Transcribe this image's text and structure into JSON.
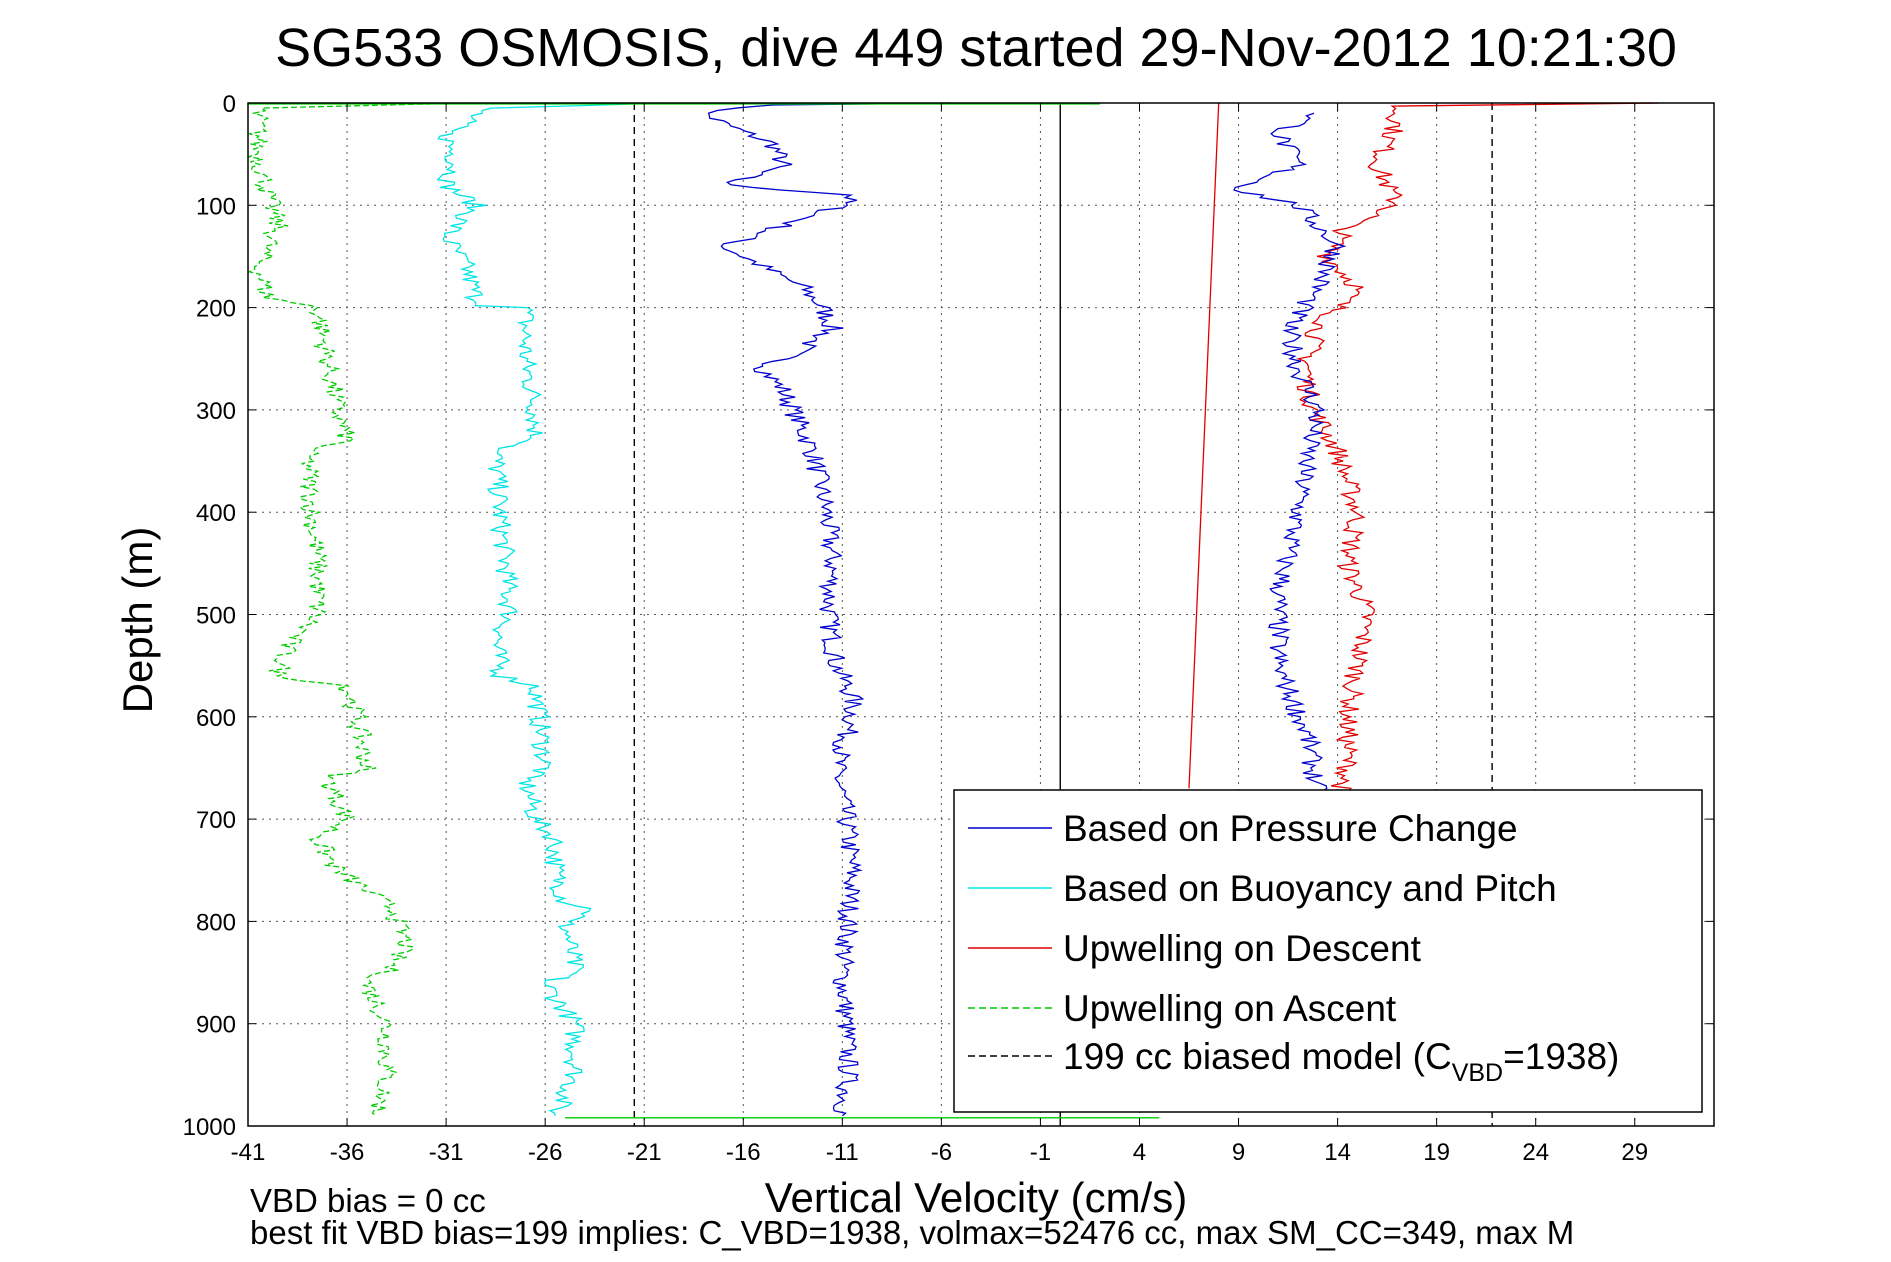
{
  "chart_data": {
    "type": "line",
    "title": "SG533 OSMOSIS, dive 449 started 29-Nov-2012 10:21:30",
    "xlabel": "Vertical Velocity (cm/s)",
    "ylabel": "Depth (m)",
    "xlim": [
      -41,
      33
    ],
    "ylim": [
      0,
      1000
    ],
    "y_reversed": true,
    "xticks": [
      -41,
      -36,
      -31,
      -26,
      -21,
      -16,
      -11,
      -6,
      -1,
      4,
      9,
      14,
      19,
      24,
      29
    ],
    "yticks": [
      0,
      100,
      200,
      300,
      400,
      500,
      600,
      700,
      800,
      900,
      1000
    ],
    "grid": true,
    "legend_position": "bottom-right",
    "footnote_line1": "VBD bias = 0 cc",
    "footnote_line2": "best fit VBD bias=199 implies: C_VBD=1938, volmax=52476 cc, max SM_CC=349, max M",
    "legend": [
      {
        "label": "Based on Pressure Change",
        "color": "#0000cc",
        "dash": "solid"
      },
      {
        "label": "Based on Buoyancy and Pitch",
        "color": "#00e5e5",
        "dash": "solid"
      },
      {
        "label": "Upwelling on Descent",
        "color": "#e00000",
        "dash": "solid"
      },
      {
        "label": "Upwelling on Ascent",
        "color": "#00cc00",
        "dash": "dashed"
      },
      {
        "label": "199 cc biased model (C",
        "label_sub": "VBD",
        "label_end": "=1938)",
        "color": "#000000",
        "dash": "dashed"
      }
    ],
    "reference_lines": [
      {
        "name": "model-min",
        "x": -21.5,
        "color": "#000000",
        "dash": "dashed"
      },
      {
        "name": "zero",
        "x": 0,
        "color": "#000000",
        "dash": "solid"
      },
      {
        "name": "model-max",
        "x": 21.8,
        "color": "#000000",
        "dash": "dashed"
      }
    ],
    "series": [
      {
        "name": "Based on Pressure Change",
        "color": "#0000cc",
        "dash": "solid",
        "depth": [
          0,
          2,
          10,
          20,
          40,
          60,
          80,
          90,
          100,
          120,
          140,
          160,
          180,
          200,
          220,
          240,
          260,
          280,
          300,
          340,
          400,
          450,
          500,
          550,
          580,
          600,
          650,
          700,
          750,
          800,
          850,
          900,
          950,
          990
        ],
        "velocity": [
          -5,
          -15,
          -18,
          -17,
          -14.5,
          -14,
          -17,
          -10.5,
          -11,
          -14,
          -17,
          -15,
          -13,
          -12,
          -11.5,
          -13,
          -15,
          -14,
          -13.5,
          -12.5,
          -11.8,
          -11.5,
          -11.7,
          -11.3,
          -10.5,
          -10.5,
          -11.3,
          -10.8,
          -10.5,
          -10.7,
          -11,
          -10.8,
          -10.7,
          -11
        ]
      },
      {
        "name": "Based on Buoyancy and Pitch",
        "color": "#00e5e5",
        "dash": "solid",
        "depth": [
          0,
          5,
          30,
          60,
          80,
          100,
          130,
          160,
          190,
          198,
          200,
          250,
          300,
          330,
          340,
          400,
          450,
          500,
          530,
          560,
          570,
          600,
          650,
          660,
          700,
          720,
          750,
          780,
          790,
          800,
          850,
          860,
          900,
          950,
          990
        ],
        "velocity": [
          -20,
          -29,
          -31,
          -30.5,
          -31,
          -29.5,
          -31,
          -30,
          -29.5,
          -29,
          -27,
          -27,
          -26.5,
          -26.5,
          -28.5,
          -28.3,
          -28,
          -27.8,
          -28.5,
          -28.2,
          -26.5,
          -26.3,
          -26,
          -27,
          -26.5,
          -25.5,
          -25.5,
          -25,
          -23.5,
          -25,
          -24.5,
          -26,
          -24.5,
          -24.5,
          -25.5
        ]
      },
      {
        "name": "Upwelling on Descent",
        "color": "#e00000",
        "dash": "solid",
        "depth": [
          0,
          3,
          20,
          60,
          100,
          120,
          150,
          180,
          200,
          220,
          250,
          280,
          300,
          340,
          400,
          450,
          500,
          550,
          600,
          650,
          680
        ],
        "velocity": [
          30,
          17,
          17,
          16,
          17,
          14.5,
          13.5,
          15,
          14,
          13,
          12.5,
          12.5,
          12.8,
          14,
          15,
          14.5,
          15.5,
          15,
          14.5,
          14.5,
          14
        ]
      },
      {
        "name": "Upwelling on Ascent",
        "color": "#00cc00",
        "dash": "dashed",
        "depth": [
          0,
          5,
          50,
          90,
          120,
          160,
          190,
          198,
          200,
          250,
          300,
          330,
          340,
          400,
          450,
          500,
          530,
          560,
          570,
          600,
          650,
          660,
          700,
          720,
          750,
          790,
          800,
          820,
          850,
          860,
          900,
          950,
          990
        ],
        "velocity": [
          -30,
          -40.5,
          -40.5,
          -40,
          -39.5,
          -40.5,
          -40,
          -38,
          -37.5,
          -37,
          -36.5,
          -36,
          -38,
          -37.8,
          -37.5,
          -37.5,
          -39,
          -39.5,
          -36,
          -35.5,
          -35,
          -37,
          -36,
          -37.5,
          -36.5,
          -33.5,
          -33.5,
          -33,
          -34,
          -35,
          -34,
          -34,
          -34.5
        ]
      },
      {
        "name": "Pressure Change upper band",
        "color": "#0000cc",
        "dash": "solid",
        "depth": [
          10,
          30,
          60,
          85,
          100,
          140,
          180,
          220,
          260,
          300,
          340,
          400,
          480,
          550,
          620,
          680
        ],
        "velocity": [
          13,
          11,
          12,
          9,
          12,
          14,
          13,
          11.5,
          12,
          13,
          12.5,
          12,
          11,
          11,
          12.5,
          13
        ]
      },
      {
        "name": "Descent model line",
        "color": "#e00000",
        "dash": "solid",
        "depth": [
          0,
          670
        ],
        "velocity": [
          8,
          6.5
        ]
      },
      {
        "name": "Surface segment",
        "color": "#00cc00",
        "dash": "solid",
        "depth": [
          1,
          1
        ],
        "velocity": [
          -41,
          2
        ]
      },
      {
        "name": "Bottom segment",
        "color": "#00cc00",
        "dash": "solid",
        "depth": [
          992,
          992
        ],
        "velocity": [
          -25,
          5
        ]
      }
    ]
  }
}
